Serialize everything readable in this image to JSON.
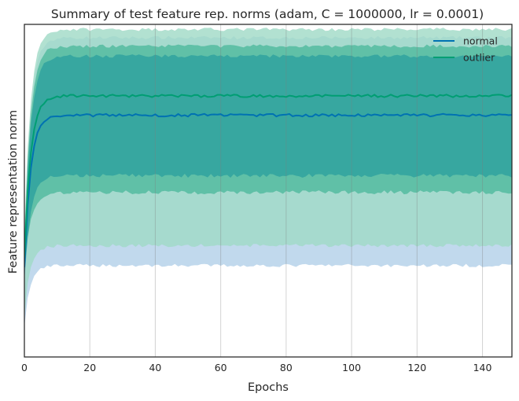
{
  "chart_data": {
    "type": "line",
    "title": "Summary of test feature rep. norms (adam, C = 1000000, lr = 0.0001)",
    "xlabel": "Epochs",
    "ylabel": "Feature representation norm",
    "xlim": [
      0,
      149
    ],
    "x_ticks": [
      0,
      20,
      40,
      60,
      80,
      100,
      120,
      140
    ],
    "y_tick_labels": "none",
    "grid": "vertical",
    "legend": "top-right",
    "note_y": "y axis has no tick labels; values are relative (0 = bottom of axis, 1 = top of axis)",
    "ylim": [
      0,
      1
    ],
    "series": [
      {
        "name": "normal",
        "color": "#0072b2",
        "band_color": "#b2d0e8",
        "plateau_mean": 0.727,
        "plateau_band_inner": [
          0.545,
          0.905
        ],
        "plateau_band_outer": [
          0.275,
          0.96
        ],
        "start_mean": 0.27
      },
      {
        "name": "outlier",
        "color": "#009e73",
        "band_color": "#9fd9c6",
        "plateau_mean": 0.785,
        "plateau_band_inner": [
          0.495,
          0.935
        ],
        "plateau_band_outer": [
          0.335,
          0.985
        ],
        "start_mean": 0.3
      }
    ]
  }
}
